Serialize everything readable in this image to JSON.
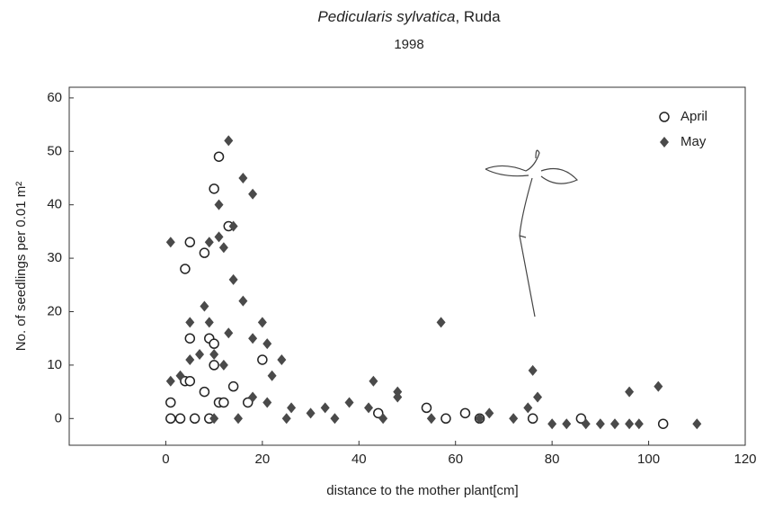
{
  "chart_data": {
    "type": "scatter",
    "title": {
      "species": "Pedicularis sylvatica",
      "place": ", Ruda"
    },
    "subtitle": "1998",
    "xlabel": "distance to the mother plant[cm]",
    "ylabel": "No. of seedlings per 0.01 m²",
    "xlim": [
      -20,
      120
    ],
    "xticks": [
      0,
      20,
      40,
      60,
      80,
      100,
      120
    ],
    "ylim": [
      -5,
      62
    ],
    "yticks": [
      0,
      10,
      20,
      30,
      40,
      50,
      60
    ],
    "grid": false,
    "legend": "top-right",
    "series": [
      {
        "name": "April",
        "marker": "circle-open",
        "color": "#222222",
        "x": [
          1,
          1,
          3,
          4,
          5,
          5,
          4,
          5,
          6,
          8,
          8,
          9,
          9,
          10,
          11,
          10,
          13,
          11,
          14,
          17,
          20,
          12,
          10,
          44,
          54,
          58,
          62,
          65,
          76,
          86,
          103
        ],
        "values": [
          3,
          0,
          0,
          28,
          33,
          15,
          7,
          7,
          0,
          31,
          5,
          15,
          0,
          14,
          49,
          43,
          36,
          3,
          6,
          3,
          11,
          3,
          10,
          1,
          2,
          0,
          1,
          0,
          0,
          0,
          -1
        ]
      },
      {
        "name": "May",
        "marker": "diamond",
        "color": "#4a4a4a",
        "x": [
          1,
          1,
          3,
          5,
          7,
          8,
          9,
          9,
          10,
          11,
          11,
          12,
          12,
          13,
          13,
          14,
          14,
          16,
          16,
          18,
          18,
          20,
          21,
          22,
          21,
          24,
          26,
          30,
          33,
          38,
          43,
          42,
          48,
          48,
          57,
          67,
          75,
          76,
          77,
          96,
          102,
          5,
          18,
          10,
          15,
          25,
          35,
          45,
          55,
          65,
          72,
          80,
          83,
          87,
          90,
          93,
          96,
          98,
          110
        ],
        "values": [
          7,
          33,
          8,
          18,
          12,
          21,
          33,
          18,
          12,
          40,
          34,
          32,
          10,
          52,
          16,
          36,
          26,
          22,
          45,
          42,
          15,
          18,
          14,
          8,
          3,
          11,
          2,
          1,
          2,
          3,
          7,
          2,
          5,
          4,
          18,
          1,
          2,
          9,
          4,
          5,
          6,
          11,
          4,
          0,
          0,
          0,
          0,
          0,
          0,
          0,
          0,
          -1,
          -1,
          -1,
          -1,
          -1,
          -1,
          -1,
          -1
        ]
      }
    ]
  }
}
